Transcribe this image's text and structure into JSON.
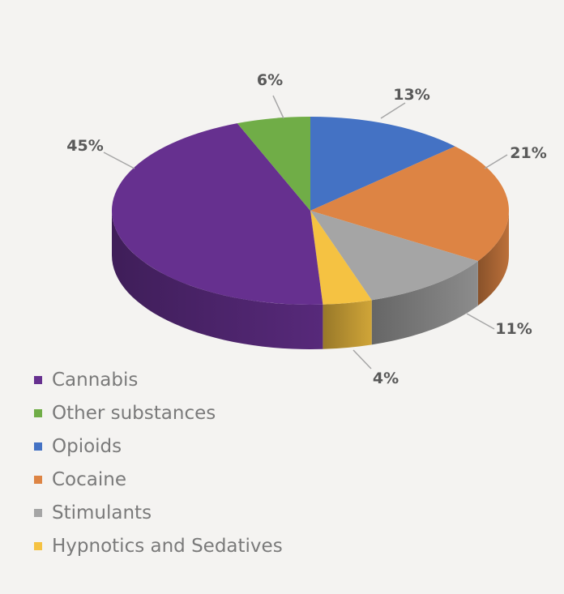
{
  "chart_data": {
    "type": "pie",
    "style": "3d",
    "categories": [
      "Cannabis",
      "Other substances",
      "Opioids",
      "Cocaine",
      "Stimulants",
      "Hypnotics and Sedatives"
    ],
    "values": [
      45,
      6,
      13,
      21,
      11,
      4
    ],
    "data_labels": [
      "45%",
      "6%",
      "13%",
      "21%",
      "11%",
      "4%"
    ],
    "colors": [
      "#66308f",
      "#70ad47",
      "#4472c4",
      "#dd8444",
      "#a5a5a5",
      "#f5c242"
    ],
    "legend_placement": "bottom-left"
  }
}
